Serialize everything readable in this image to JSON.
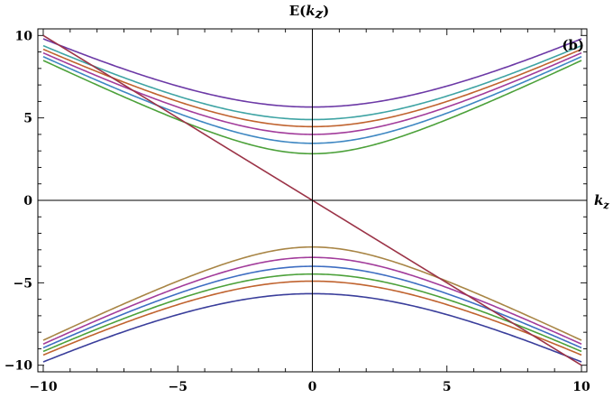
{
  "chart_data": {
    "type": "line",
    "title": "E(kz)",
    "title_parts": {
      "base": "E(",
      "var": "k",
      "sub": "z",
      "close": ")"
    },
    "xlabel": "kz",
    "xlabel_parts": {
      "var": "k",
      "sub": "z"
    },
    "ylabel": "",
    "panel_label": "(b)",
    "xlim": [
      -10.2,
      10.2
    ],
    "ylim": [
      -10.4,
      10.4
    ],
    "x_ticks": [
      -10,
      -5,
      0,
      5,
      10
    ],
    "x_tick_labels": [
      "−10",
      "−5",
      "0",
      "5",
      "10"
    ],
    "y_ticks": [
      -10,
      -5,
      0,
      5,
      10
    ],
    "y_tick_labels": [
      "−10",
      "−5",
      "0",
      "5",
      "10"
    ],
    "grid": false,
    "frame": true,
    "axes_through_origin": true,
    "x_range": [
      -10,
      10
    ],
    "series": [
      {
        "color": "#4CA13A",
        "band": "upper",
        "gap": 2.83
      },
      {
        "color": "#3E87C2",
        "band": "upper",
        "gap": 3.46
      },
      {
        "color": "#A23C9B",
        "band": "upper",
        "gap": 4.0
      },
      {
        "color": "#C0632F",
        "band": "upper",
        "gap": 4.47
      },
      {
        "color": "#3FA4A4",
        "band": "upper",
        "gap": 4.9
      },
      {
        "color": "#6C39A6",
        "band": "upper",
        "gap": 5.66
      },
      {
        "color": "#A88545",
        "band": "lower",
        "gap": 2.83
      },
      {
        "color": "#A23C9B",
        "band": "lower",
        "gap": 3.46
      },
      {
        "color": "#3E6EC2",
        "band": "lower",
        "gap": 4.0
      },
      {
        "color": "#4CA13A",
        "band": "lower",
        "gap": 4.47
      },
      {
        "color": "#C0632F",
        "band": "lower",
        "gap": 4.9
      },
      {
        "color": "#3A3E9B",
        "band": "lower",
        "gap": 5.66
      },
      {
        "color": "#9B3347",
        "band": "linear",
        "values_at_range": [
          10,
          -10
        ]
      }
    ]
  }
}
